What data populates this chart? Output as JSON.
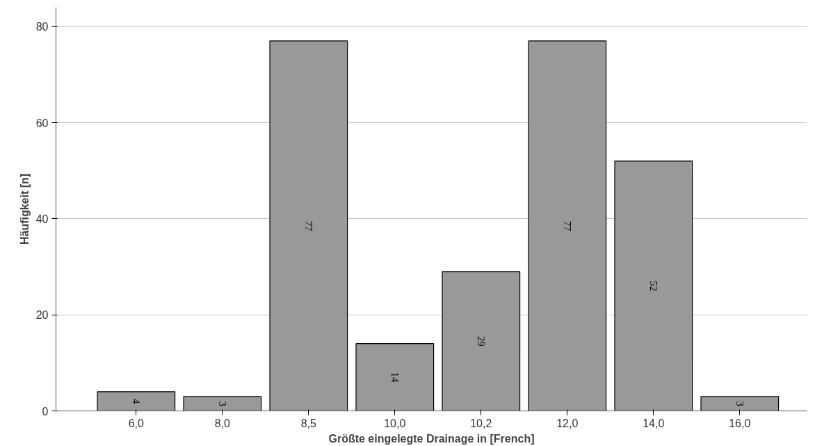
{
  "chart_data": {
    "type": "bar",
    "xlabel": "Größte eingelegte Drainage in [French]",
    "ylabel": "Häufigkeit [n]",
    "categories": [
      "6,0",
      "8,0",
      "8,5",
      "10,0",
      "10,2",
      "12,0",
      "14,0",
      "16,0"
    ],
    "values": [
      4,
      3,
      77,
      14,
      29,
      77,
      52,
      3
    ],
    "color": "#999999",
    "ylim": [
      0,
      84
    ],
    "yticks": [
      0,
      20,
      40,
      60,
      80
    ],
    "grid": "y",
    "data_labels": true
  }
}
